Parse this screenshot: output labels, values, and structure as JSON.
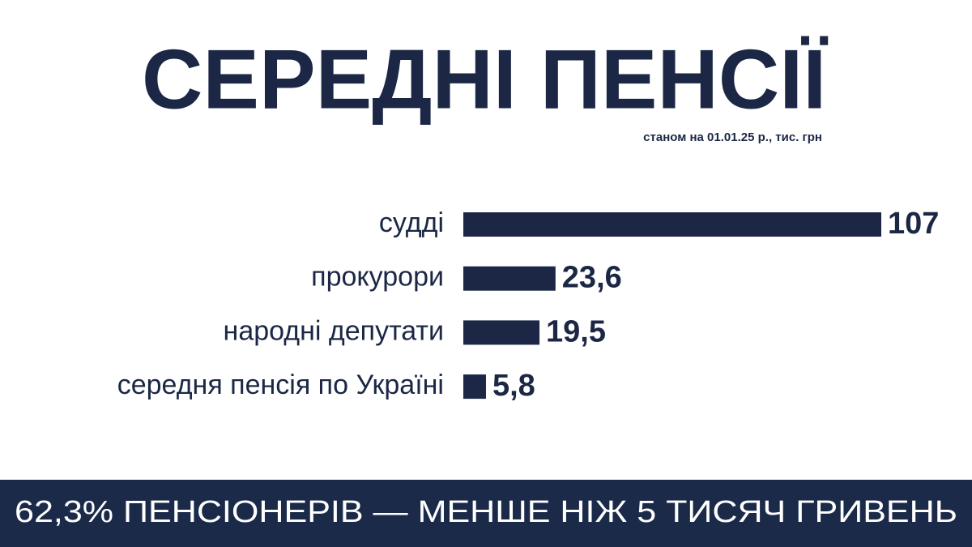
{
  "chart_data": {
    "type": "barh",
    "title": "СЕРЕДНІ ПЕНСІЇ",
    "subtitle": "станом на 01.01.25 р., тис. грн",
    "categories": [
      "судді",
      "прокурори",
      "народні депутати",
      "середня пенсія по Україні"
    ],
    "values": [
      107,
      23.6,
      19.5,
      5.8
    ],
    "value_labels": [
      "107",
      "23,6",
      "19,5",
      "5,8"
    ],
    "color": "#1b2745",
    "annotation": "62,3% ПЕНСІОНЕРІВ — МЕНШЕ НІЖ 5 ТИСЯЧ ГРИВЕНЬ"
  }
}
